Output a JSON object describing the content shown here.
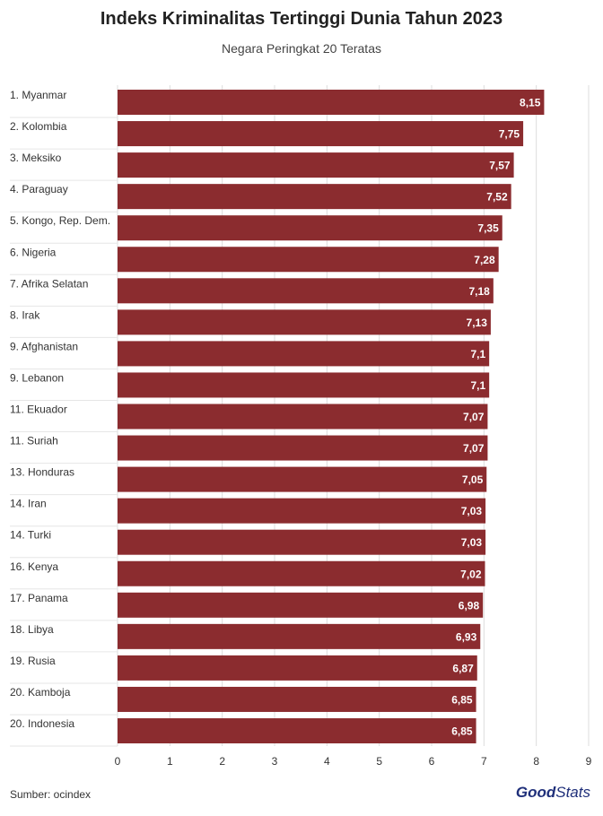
{
  "header": {
    "title": "Indeks Kriminalitas Tertinggi Dunia Tahun 2023",
    "subtitle": "Negara Peringkat 20 Teratas"
  },
  "footer": {
    "source": "Sumber: ocindex",
    "logo_good": "Good",
    "logo_stats": "Stats"
  },
  "chart_data": {
    "type": "bar",
    "orientation": "horizontal",
    "title": "Indeks Kriminalitas Tertinggi Dunia Tahun 2023",
    "subtitle": "Negara Peringkat 20 Teratas",
    "categories": [
      "1. Myanmar",
      "2. Kolombia",
      "3. Meksiko",
      "4. Paraguay",
      "5. Kongo, Rep. Dem.",
      "6. Nigeria",
      "7. Afrika Selatan",
      "8. Irak",
      "9. Afghanistan",
      "9. Lebanon",
      "11. Ekuador",
      "11. Suriah",
      "13. Honduras",
      "14. Iran",
      "14. Turki",
      "16. Kenya",
      "17. Panama",
      "18. Libya",
      "19. Rusia",
      "20. Kamboja",
      "20. Indonesia"
    ],
    "values": [
      8.15,
      7.75,
      7.57,
      7.52,
      7.35,
      7.28,
      7.18,
      7.13,
      7.1,
      7.1,
      7.07,
      7.07,
      7.05,
      7.03,
      7.03,
      7.02,
      6.98,
      6.93,
      6.87,
      6.85,
      6.85
    ],
    "value_labels": [
      "8,15",
      "7,75",
      "7,57",
      "7,52",
      "7,35",
      "7,28",
      "7,18",
      "7,13",
      "7,1",
      "7,1",
      "7,07",
      "7,07",
      "7,05",
      "7,03",
      "7,03",
      "7,02",
      "6,98",
      "6,93",
      "6,87",
      "6,85",
      "6,85"
    ],
    "xlim": [
      0,
      9
    ],
    "xticks": [
      "0",
      "1",
      "2",
      "3",
      "4",
      "5",
      "6",
      "7",
      "8",
      "9"
    ],
    "grid": true,
    "bar_color": "#8b2c2f",
    "label_color": "#ffffff"
  }
}
